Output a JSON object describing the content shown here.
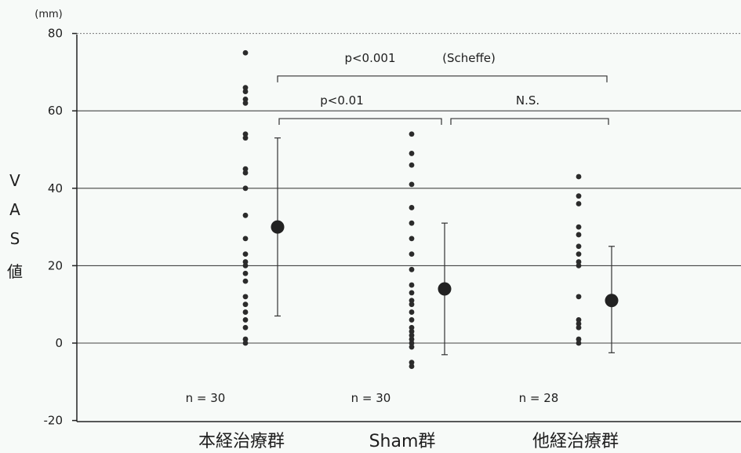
{
  "chart_data": {
    "type": "scatter",
    "y_unit": "(mm)",
    "ylabel_chars": [
      "V",
      "A",
      "S",
      "値"
    ],
    "ylim": [
      -20,
      80
    ],
    "yticks": [
      -20,
      0,
      20,
      40,
      60,
      80
    ],
    "grid": true,
    "groups": [
      {
        "name": "本経治療群",
        "n_label": "n = 30",
        "mean": 30,
        "error_range": [
          7,
          53
        ],
        "points": [
          75,
          66,
          65,
          63,
          62,
          54,
          53,
          45,
          44,
          40,
          33,
          27,
          23,
          21,
          20,
          18,
          16,
          12,
          10,
          8,
          6,
          4,
          1,
          0
        ]
      },
      {
        "name": "Sham群",
        "n_label": "n = 30",
        "mean": 14,
        "error_range": [
          -3,
          31
        ],
        "points": [
          54,
          49,
          46,
          41,
          35,
          31,
          27,
          23,
          19,
          15,
          13,
          11,
          10,
          8,
          6,
          4,
          3,
          2,
          1,
          0,
          -1,
          -5,
          -6
        ]
      },
      {
        "name": "他経治療群",
        "n_label": "n = 28",
        "mean": 11,
        "error_range": [
          -2.5,
          25
        ],
        "points": [
          43,
          38,
          36,
          30,
          28,
          25,
          23,
          21,
          20,
          12,
          6,
          5,
          4,
          1,
          0
        ]
      }
    ],
    "comparisons": [
      {
        "from": 0,
        "to": 2,
        "label": "p<0.001",
        "note": "(Scheffe)",
        "y": 69
      },
      {
        "from": 0,
        "to": 1,
        "label": "p<0.01",
        "y": 58
      },
      {
        "from": 1,
        "to": 2,
        "label": "N.S.",
        "y": 58
      }
    ]
  }
}
